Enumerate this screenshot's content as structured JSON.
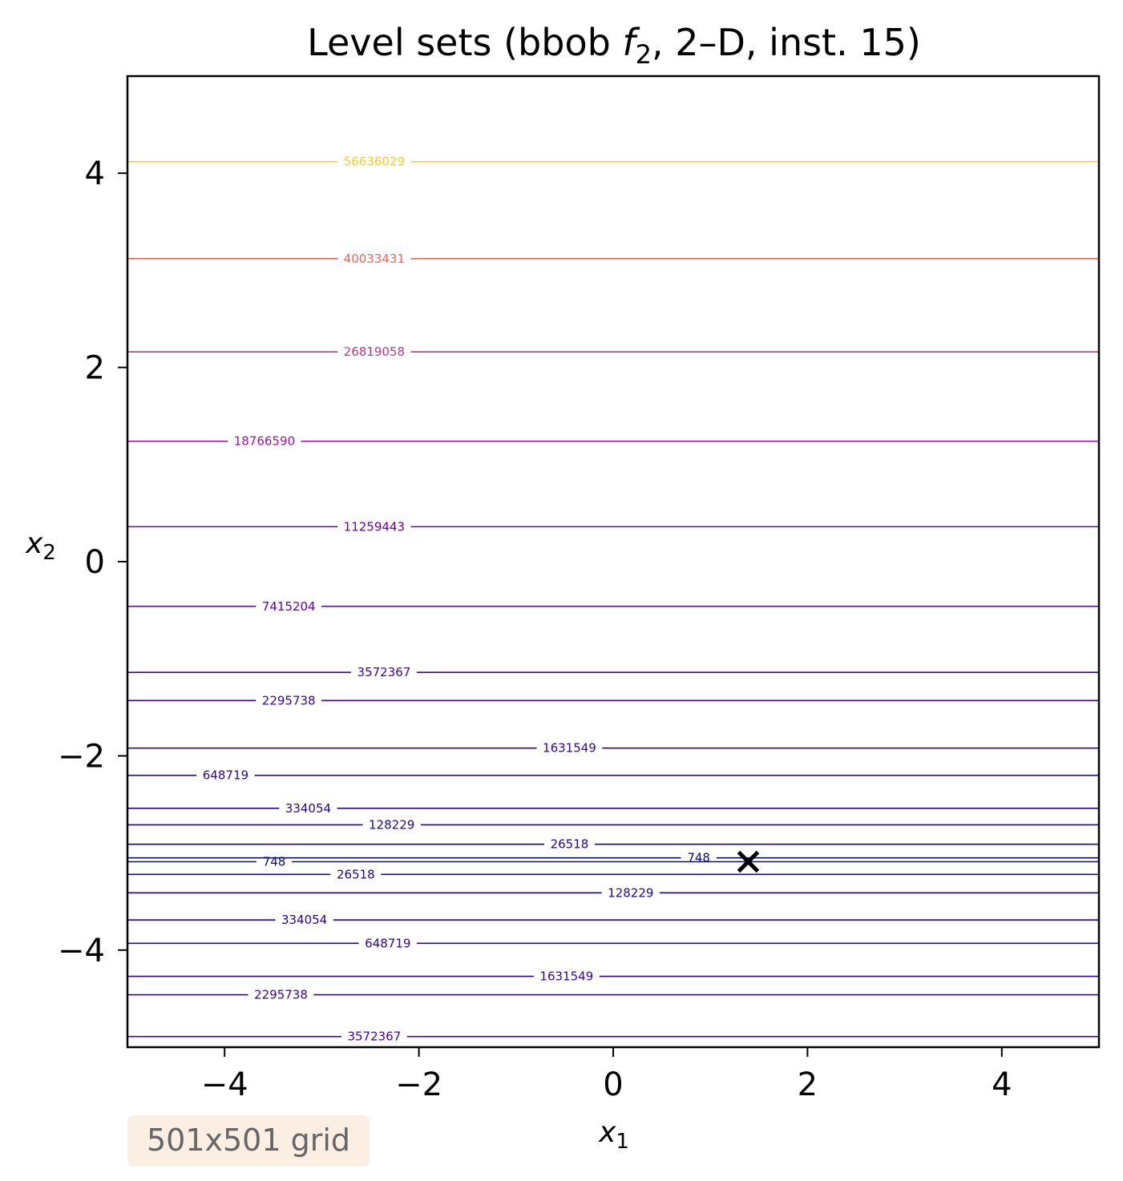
{
  "chart_data": {
    "type": "contour",
    "title": "Level sets (bbob f2, 2–D, inst. 15)",
    "title_parts": {
      "prefix": "Level sets (bbob ",
      "f": "f",
      "sub": "2",
      "suffix": ", 2–D, inst. 15)"
    },
    "xlabel": {
      "base": "x",
      "sub": "1"
    },
    "ylabel": {
      "base": "x",
      "sub": "2"
    },
    "xlim": [
      -5,
      5
    ],
    "ylim": [
      -5,
      5
    ],
    "xticks": [
      -4,
      -2,
      0,
      2,
      4
    ],
    "yticks": [
      -4,
      -2,
      0,
      2,
      4
    ],
    "xtick_labels": [
      "−4",
      "−2",
      "0",
      "2",
      "4"
    ],
    "ytick_labels": [
      "−4",
      "−2",
      "0",
      "2",
      "4"
    ],
    "grid": false,
    "colormap": "plasma",
    "levels": [
      {
        "value": "748",
        "color": "#0d0887",
        "lines": [
          {
            "y": -3.05,
            "label_x": 0.88
          },
          {
            "y": -3.09,
            "label_x": -3.49
          }
        ]
      },
      {
        "value": "26518",
        "color": "#1a0790",
        "lines": [
          {
            "y": -2.91,
            "label_x": -0.45
          },
          {
            "y": -3.22,
            "label_x": -2.65
          }
        ]
      },
      {
        "value": "128229",
        "color": "#220690",
        "lines": [
          {
            "y": -2.71,
            "label_x": -2.28
          },
          {
            "y": -3.41,
            "label_x": 0.18
          }
        ]
      },
      {
        "value": "334054",
        "color": "#270591",
        "lines": [
          {
            "y": -2.54,
            "label_x": -3.14
          },
          {
            "y": -3.69,
            "label_x": -3.18
          }
        ]
      },
      {
        "value": "648719",
        "color": "#2c0594",
        "lines": [
          {
            "y": -2.2,
            "label_x": -3.99
          },
          {
            "y": -3.93,
            "label_x": -2.32
          }
        ]
      },
      {
        "value": "1631549",
        "color": "#330597",
        "lines": [
          {
            "y": -1.92,
            "label_x": -0.45
          },
          {
            "y": -4.27,
            "label_x": -0.48
          }
        ]
      },
      {
        "value": "2295738",
        "color": "#3a049a",
        "lines": [
          {
            "y": -1.43,
            "label_x": -3.34
          },
          {
            "y": -4.46,
            "label_x": -3.42
          }
        ]
      },
      {
        "value": "3572367",
        "color": "#42039d",
        "lines": [
          {
            "y": -1.14,
            "label_x": -2.36
          },
          {
            "y": -4.89,
            "label_x": -2.46
          }
        ]
      },
      {
        "value": "7415204",
        "color": "#5c01a6",
        "lines": [
          {
            "y": -0.46,
            "label_x": -3.34
          }
        ]
      },
      {
        "value": "11259443",
        "color": "#6a00a8",
        "lines": [
          {
            "y": 0.36,
            "label_x": -2.46
          }
        ]
      },
      {
        "value": "18766590",
        "color": "#9c179e",
        "lines": [
          {
            "y": 1.24,
            "label_x": -3.59
          }
        ]
      },
      {
        "value": "26819058",
        "color": "#c13b82",
        "lines": [
          {
            "y": 2.16,
            "label_x": -2.46
          }
        ]
      },
      {
        "value": "40033431",
        "color": "#e8685d",
        "lines": [
          {
            "y": 3.12,
            "label_x": -2.46
          }
        ]
      },
      {
        "value": "56636029",
        "color": "#fccd25",
        "lines": [
          {
            "y": 4.12,
            "label_x": -2.46
          }
        ]
      }
    ],
    "optimum_marker": {
      "x": 1.39,
      "y": -3.09,
      "symbol": "x",
      "color": "#000000"
    }
  },
  "annotation": {
    "text": "501x501 grid",
    "bg_color": "#fbefe3",
    "text_color": "#666666"
  }
}
